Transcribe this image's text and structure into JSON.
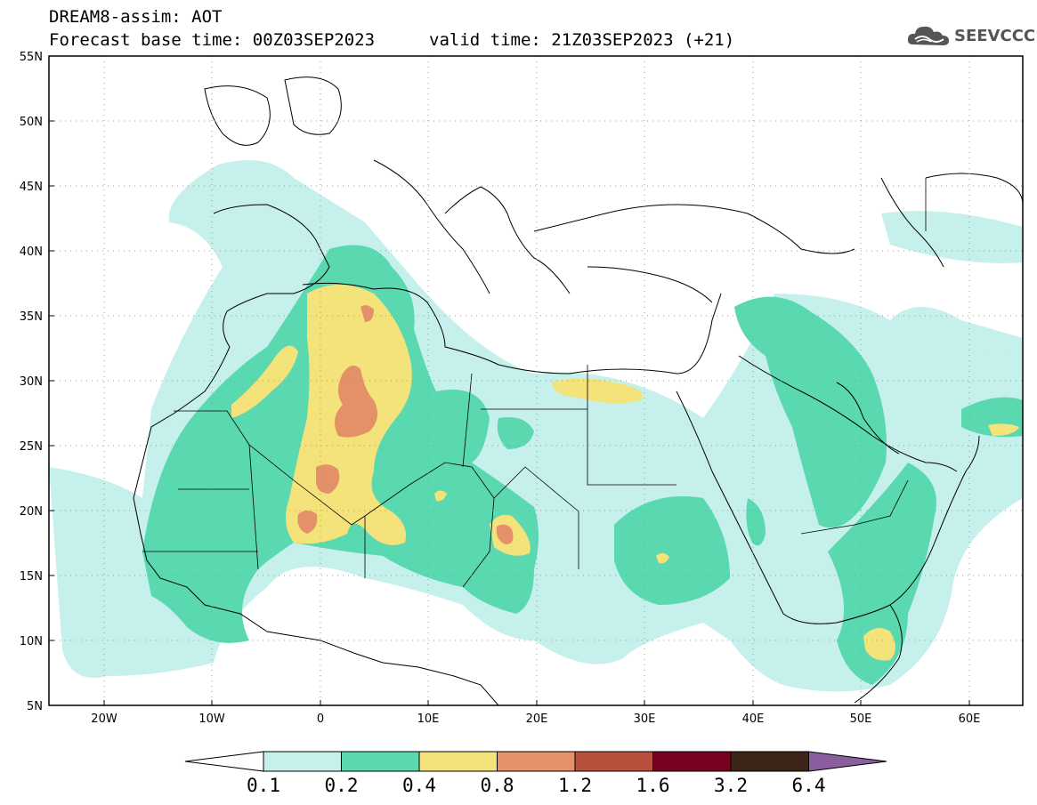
{
  "header": {
    "title": "DREAM8-assim: AOT",
    "base_time": "Forecast base time: 00Z03SEP2023",
    "valid_time": "valid time: 21Z03SEP2023 (+21)",
    "logo_text": "SEEVCCC",
    "logo_icon": "cloud-icon"
  },
  "map": {
    "lon_range": [
      -25,
      65
    ],
    "lat_range": [
      5,
      55
    ],
    "lat_labels": [
      "5N",
      "10N",
      "15N",
      "20N",
      "25N",
      "30N",
      "35N",
      "40N",
      "45N",
      "50N",
      "55N"
    ],
    "lon_labels": [
      "20W",
      "10W",
      "0",
      "10E",
      "20E",
      "30E",
      "40E",
      "50E",
      "60E"
    ],
    "grid": "dotted"
  },
  "colorbar": {
    "levels": [
      "0.1",
      "0.2",
      "0.4",
      "0.8",
      "1.2",
      "1.6",
      "3.2",
      "6.4"
    ],
    "colors": [
      "#ffffff",
      "#c5f0ec",
      "#5ad8b0",
      "#f4e27a",
      "#e49068",
      "#b8503d",
      "#7a0020",
      "#3c2416",
      "#8a5fa0"
    ]
  }
}
